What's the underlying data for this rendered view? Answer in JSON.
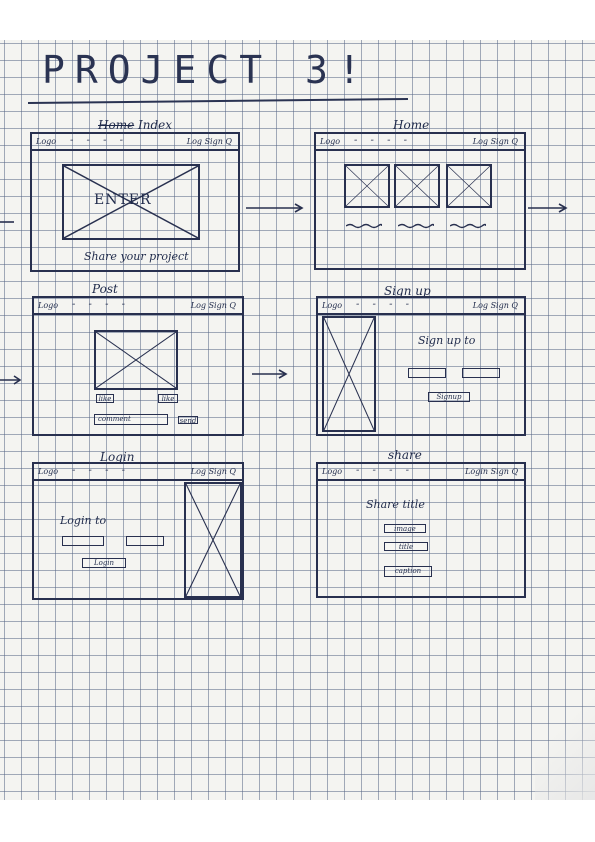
{
  "title": "PROJECT 3!",
  "nav": {
    "logo": "Logo",
    "links": "- - - -",
    "right_short": "Log Sign Q",
    "right_login": "Login Sign Q"
  },
  "frames": {
    "index": {
      "label_struck": "Home",
      "label": "Index",
      "hero_text": "ENTER",
      "caption": "Share your project"
    },
    "home": {
      "label": "Home"
    },
    "post": {
      "label": "Post",
      "button_small": "like",
      "left_label": "like",
      "comment_field": "comment",
      "send_button": "send"
    },
    "signup": {
      "label": "Sign up",
      "heading": "Sign up to",
      "button": "Signup"
    },
    "login": {
      "label": "Login",
      "heading": "Login to",
      "button": "Login"
    },
    "share": {
      "label": "share",
      "heading": "Share title",
      "field1": "image",
      "field2": "title",
      "button": "caption"
    }
  },
  "colors": {
    "ink": "#1f2a4a",
    "grid": "#5a6987",
    "paper": "#f4f4f1"
  }
}
